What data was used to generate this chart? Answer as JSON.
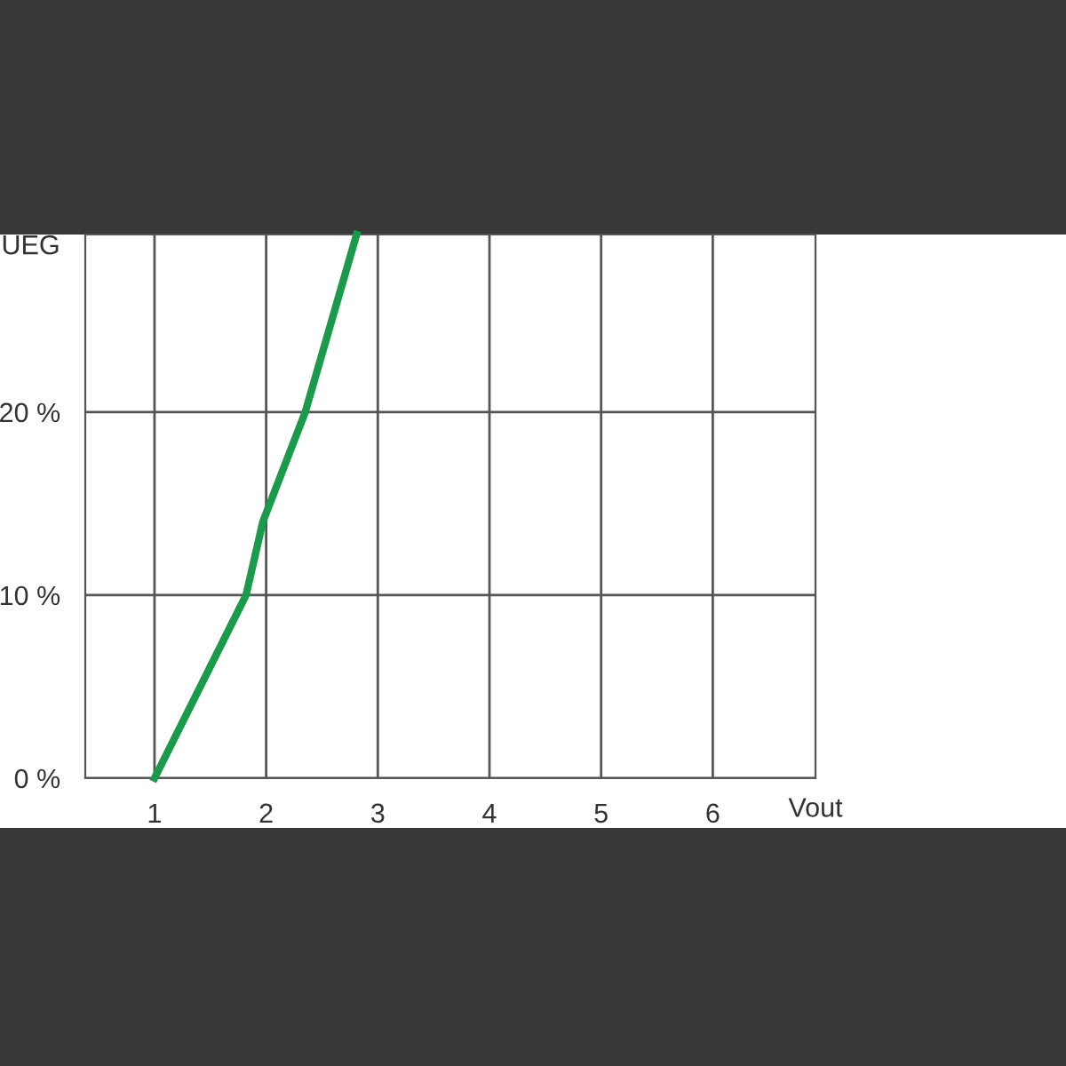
{
  "chart_data": {
    "type": "line",
    "ylabel": "UEG",
    "xlabel": "Vout",
    "x": [
      1,
      1.82,
      1.97,
      2.35,
      2.81
    ],
    "series": [
      {
        "color": "#1a9a4a",
        "values": [
          0,
          10,
          14,
          20,
          29.7
        ]
      }
    ],
    "xlim": [
      0.38,
      6.92
    ],
    "xticks": [
      1,
      2,
      3,
      4,
      5,
      6
    ],
    "ylim": [
      0,
      29.7
    ],
    "yticks": [
      {
        "value": 0,
        "label": "0 %"
      },
      {
        "value": 10,
        "label": "10 %"
      },
      {
        "value": 20,
        "label": "20 %"
      }
    ],
    "grid": true,
    "marker": "none",
    "line_style": "solid"
  }
}
